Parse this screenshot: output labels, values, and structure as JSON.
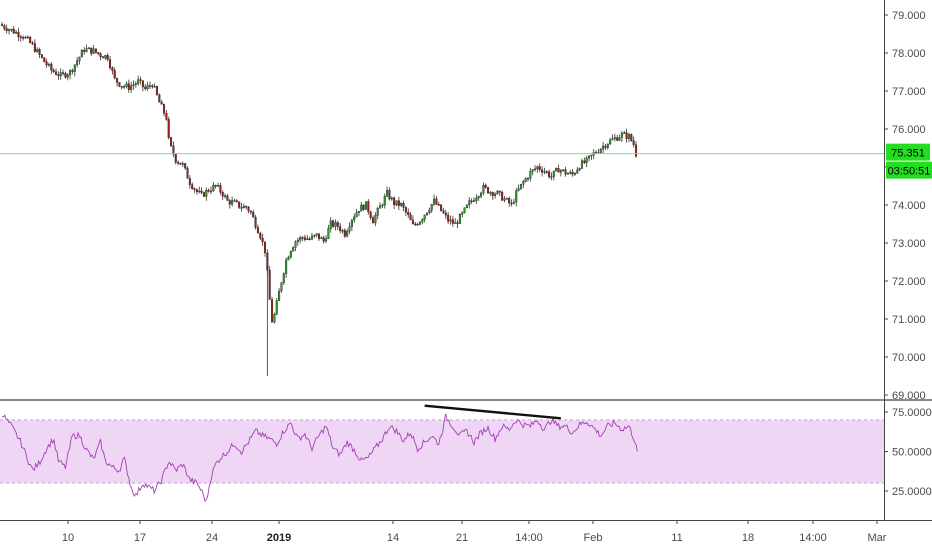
{
  "colors": {
    "up": "#2e9e2e",
    "down": "#a81c1c",
    "wick": "#333333",
    "rsi_line": "#a33fb5",
    "rsi_band": "#f0d6f5",
    "rsi_band_border": "#c9a4d2",
    "price_line": "#7fe07f",
    "badge_bg": "#22dd22",
    "axis_text": "#4a4a4a",
    "trendline": "#111111"
  },
  "price_axis": {
    "ticks": [
      "79.000",
      "78.000",
      "77.000",
      "76.000",
      "75.000",
      "74.000",
      "73.000",
      "72.000",
      "71.000",
      "70.000",
      "69.000"
    ],
    "ylim": [
      69.0,
      79.3
    ]
  },
  "last_price": {
    "value": 75.351,
    "label": "75.351",
    "countdown": "03:50:51"
  },
  "rsi_axis": {
    "ticks": [
      "75.0000",
      "50.0000",
      "25.0000"
    ],
    "ylim": [
      10,
      85
    ],
    "upper_band": 70,
    "lower_band": 30
  },
  "time_axis": {
    "labels": [
      {
        "text": "10",
        "bold": false
      },
      {
        "text": "17",
        "bold": false
      },
      {
        "text": "24",
        "bold": false
      },
      {
        "text": "2019",
        "bold": true
      },
      {
        "text": "14",
        "bold": false
      },
      {
        "text": "21",
        "bold": false
      },
      {
        "text": "14:00",
        "bold": false
      },
      {
        "text": "Feb",
        "bold": false
      },
      {
        "text": "11",
        "bold": false
      },
      {
        "text": "18",
        "bold": false
      },
      {
        "text": "14:00",
        "bold": false
      },
      {
        "text": "Mar",
        "bold": false
      }
    ]
  },
  "chart_data": {
    "type": "candlestick",
    "price_path": [
      [
        0,
        78.75
      ],
      [
        5,
        78.6
      ],
      [
        10,
        78.45
      ],
      [
        14,
        78.2
      ],
      [
        18,
        77.85
      ],
      [
        22,
        77.55
      ],
      [
        26,
        77.4
      ],
      [
        30,
        77.5
      ],
      [
        33,
        77.8
      ],
      [
        36,
        78.1
      ],
      [
        40,
        78.05
      ],
      [
        43,
        77.95
      ],
      [
        46,
        77.9
      ],
      [
        49,
        77.3
      ],
      [
        52,
        77.15
      ],
      [
        55,
        77.1
      ],
      [
        59,
        77.25
      ],
      [
        62,
        77.05
      ],
      [
        65,
        77.2
      ],
      [
        68,
        76.7
      ],
      [
        71,
        76.3
      ],
      [
        72,
        75.7
      ],
      [
        73,
        75.5
      ],
      [
        75,
        75.2
      ],
      [
        78,
        75.05
      ],
      [
        81,
        74.6
      ],
      [
        84,
        74.35
      ],
      [
        86,
        74.25
      ],
      [
        89,
        74.4
      ],
      [
        92,
        74.5
      ],
      [
        95,
        74.3
      ],
      [
        97,
        74.1
      ],
      [
        100,
        74.05
      ],
      [
        103,
        73.95
      ],
      [
        105,
        73.95
      ],
      [
        107,
        73.8
      ],
      [
        109,
        73.5
      ],
      [
        111,
        73.2
      ],
      [
        113,
        72.8
      ],
      [
        114,
        72.2
      ],
      [
        115,
        71.5
      ],
      [
        116,
        70.95
      ],
      [
        117,
        71.1
      ],
      [
        118,
        71.4
      ],
      [
        119,
        71.7
      ],
      [
        120,
        72.0
      ],
      [
        122,
        72.55
      ],
      [
        124,
        72.85
      ],
      [
        126,
        73.05
      ],
      [
        129,
        73.15
      ],
      [
        132,
        73.1
      ],
      [
        135,
        73.2
      ],
      [
        138,
        73.05
      ],
      [
        141,
        73.5
      ],
      [
        144,
        73.45
      ],
      [
        147,
        73.25
      ],
      [
        150,
        73.65
      ],
      [
        153,
        73.9
      ],
      [
        156,
        74.0
      ],
      [
        159,
        73.6
      ],
      [
        162,
        73.95
      ],
      [
        165,
        74.3
      ],
      [
        168,
        74.05
      ],
      [
        171,
        74.0
      ],
      [
        174,
        73.7
      ],
      [
        176,
        73.45
      ],
      [
        179,
        73.6
      ],
      [
        182,
        73.85
      ],
      [
        185,
        74.1
      ],
      [
        188,
        73.85
      ],
      [
        191,
        73.6
      ],
      [
        194,
        73.5
      ],
      [
        197,
        73.75
      ],
      [
        200,
        74.05
      ],
      [
        203,
        74.25
      ],
      [
        206,
        74.45
      ],
      [
        209,
        74.35
      ],
      [
        212,
        74.3
      ],
      [
        215,
        74.15
      ],
      [
        218,
        74.0
      ],
      [
        220,
        74.3
      ],
      [
        223,
        74.6
      ],
      [
        226,
        74.85
      ],
      [
        229,
        75.0
      ],
      [
        232,
        74.9
      ],
      [
        235,
        74.75
      ],
      [
        238,
        74.95
      ],
      [
        241,
        74.85
      ],
      [
        244,
        74.8
      ],
      [
        247,
        75.05
      ],
      [
        250,
        75.15
      ],
      [
        253,
        75.35
      ],
      [
        256,
        75.5
      ],
      [
        259,
        75.65
      ],
      [
        262,
        75.75
      ],
      [
        265,
        75.85
      ],
      [
        268,
        75.8
      ],
      [
        270,
        75.6
      ],
      [
        271,
        75.35
      ]
    ],
    "candle_count": 271,
    "rsi_path": [
      [
        0,
        74
      ],
      [
        4,
        66
      ],
      [
        8,
        56
      ],
      [
        11,
        45
      ],
      [
        13,
        38
      ],
      [
        16,
        43
      ],
      [
        19,
        52
      ],
      [
        22,
        58
      ],
      [
        24,
        44
      ],
      [
        27,
        40
      ],
      [
        30,
        60
      ],
      [
        33,
        60
      ],
      [
        36,
        51
      ],
      [
        39,
        45
      ],
      [
        42,
        56
      ],
      [
        44,
        44
      ],
      [
        47,
        40
      ],
      [
        50,
        38
      ],
      [
        52,
        46
      ],
      [
        55,
        27
      ],
      [
        57,
        22
      ],
      [
        60,
        30
      ],
      [
        63,
        27
      ],
      [
        65,
        25
      ],
      [
        68,
        32
      ],
      [
        71,
        44
      ],
      [
        74,
        38
      ],
      [
        77,
        42
      ],
      [
        80,
        32
      ],
      [
        83,
        30
      ],
      [
        85,
        25
      ],
      [
        87,
        18
      ],
      [
        89,
        34
      ],
      [
        91,
        42
      ],
      [
        93,
        46
      ],
      [
        96,
        50
      ],
      [
        99,
        55
      ],
      [
        102,
        50
      ],
      [
        105,
        56
      ],
      [
        108,
        63
      ],
      [
        111,
        60
      ],
      [
        114,
        58
      ],
      [
        117,
        55
      ],
      [
        120,
        63
      ],
      [
        123,
        68
      ],
      [
        126,
        58
      ],
      [
        129,
        61
      ],
      [
        132,
        52
      ],
      [
        135,
        60
      ],
      [
        138,
        66
      ],
      [
        141,
        52
      ],
      [
        144,
        48
      ],
      [
        147,
        56
      ],
      [
        150,
        51
      ],
      [
        153,
        44
      ],
      [
        156,
        46
      ],
      [
        159,
        52
      ],
      [
        162,
        58
      ],
      [
        165,
        66
      ],
      [
        168,
        63
      ],
      [
        171,
        57
      ],
      [
        174,
        62
      ],
      [
        177,
        52
      ],
      [
        180,
        56
      ],
      [
        183,
        60
      ],
      [
        186,
        55
      ],
      [
        189,
        72
      ],
      [
        192,
        66
      ],
      [
        195,
        60
      ],
      [
        198,
        63
      ],
      [
        201,
        56
      ],
      [
        204,
        62
      ],
      [
        207,
        65
      ],
      [
        210,
        58
      ],
      [
        213,
        66
      ],
      [
        216,
        64
      ],
      [
        219,
        70
      ],
      [
        222,
        67
      ],
      [
        225,
        66
      ],
      [
        228,
        70
      ],
      [
        231,
        64
      ],
      [
        234,
        70
      ],
      [
        237,
        66
      ],
      [
        240,
        66
      ],
      [
        243,
        62
      ],
      [
        246,
        67
      ],
      [
        249,
        69
      ],
      [
        252,
        65
      ],
      [
        255,
        60
      ],
      [
        258,
        66
      ],
      [
        261,
        68
      ],
      [
        264,
        64
      ],
      [
        267,
        66
      ],
      [
        270,
        55
      ],
      [
        271,
        44
      ]
    ],
    "rsi_trendline": [
      [
        180,
        79
      ],
      [
        238,
        71
      ]
    ]
  }
}
